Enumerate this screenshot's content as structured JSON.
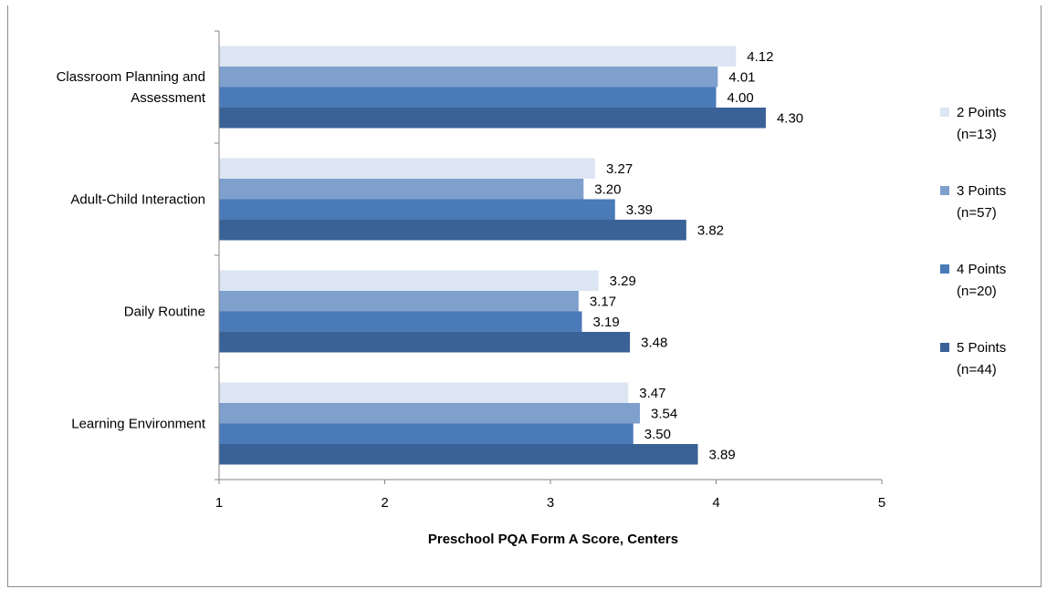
{
  "chart_data": {
    "type": "bar",
    "orientation": "horizontal",
    "categories": [
      "Classroom Planning and Assessment",
      "Adult-Child Interaction",
      "Daily Routine",
      "Learning Environment"
    ],
    "category_lines": [
      [
        "Classroom Planning and",
        "Assessment"
      ],
      [
        "Adult-Child Interaction"
      ],
      [
        "Daily Routine"
      ],
      [
        "Learning Environment"
      ]
    ],
    "series": [
      {
        "name": "2 Points",
        "legend_lines": [
          "2 Points",
          "(n=13)"
        ],
        "color": "#dce6f2",
        "values": [
          4.12,
          3.27,
          3.29,
          3.47
        ],
        "labels": [
          "4.12",
          "3.27",
          "3.29",
          "3.47"
        ]
      },
      {
        "name": "3 Points",
        "legend_lines": [
          "3 Points",
          "(n=57)"
        ],
        "color": "#7f9fcd",
        "values": [
          4.01,
          3.2,
          3.17,
          3.54
        ],
        "labels": [
          "4.01",
          "3.20",
          "3.17",
          "3.54"
        ]
      },
      {
        "name": "4 Points",
        "legend_lines": [
          "4 Points",
          "(n=20)"
        ],
        "color": "#4a7ab8",
        "values": [
          4.0,
          3.39,
          3.19,
          3.5
        ],
        "labels": [
          "4.00",
          "3.39",
          "3.19",
          "3.50"
        ]
      },
      {
        "name": "5 Points",
        "legend_lines": [
          "5 Points",
          "(n=44)"
        ],
        "color": "#3b6296",
        "values": [
          4.3,
          3.82,
          3.48,
          3.89
        ],
        "labels": [
          "4.30",
          "3.82",
          "3.48",
          "3.89"
        ]
      }
    ],
    "xlabel": "Preschool PQA Form A Score, Centers",
    "ylabel": "",
    "xlim": [
      1,
      5
    ],
    "xticks": [
      "1",
      "2",
      "3",
      "4",
      "5"
    ],
    "grid": false,
    "legend_position": "right"
  }
}
